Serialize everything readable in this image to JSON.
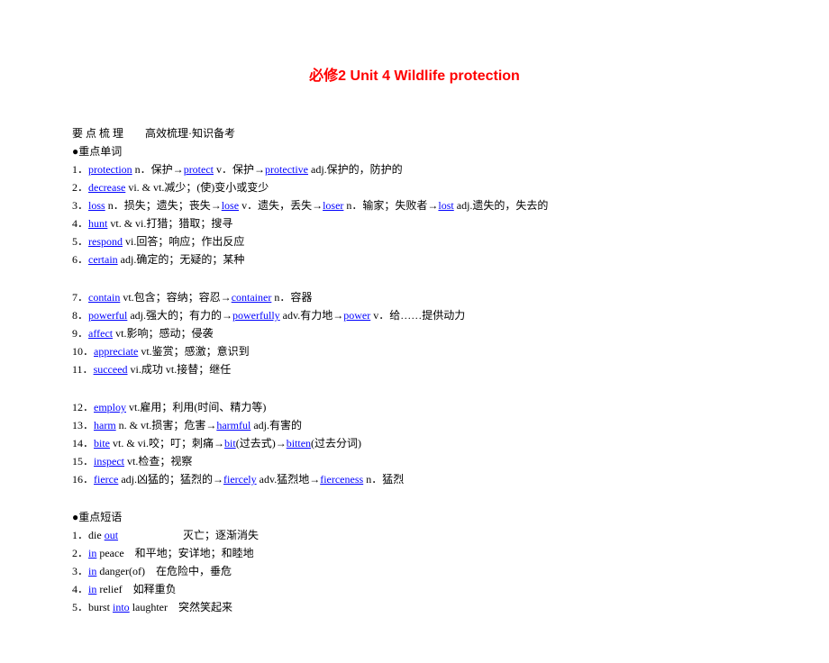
{
  "title": "必修2  Unit 4  Wildlife protection",
  "preline": "要 点 梳 理　　高效梳理·知识备考",
  "sections": [
    {
      "head": "●重点单词",
      "groups": [
        [
          {
            "n": "1．",
            "t": [
              {
                "u": "protection"
              },
              {
                "x": " n．保护→"
              },
              {
                "u": "protect"
              },
              {
                "x": " v．保护→"
              },
              {
                "u": "protective"
              },
              {
                "x": " adj.保护的，防护的"
              }
            ]
          },
          {
            "n": "2．",
            "t": [
              {
                "u": "decrease"
              },
              {
                "x": " vi. & vt.减少；(使)变小或变少"
              }
            ]
          },
          {
            "n": "3．",
            "t": [
              {
                "u": "loss"
              },
              {
                "x": " n．损失；遗失；丧失→"
              },
              {
                "u": "lose"
              },
              {
                "x": " v．遗失，丢失→"
              },
              {
                "u": "loser"
              },
              {
                "x": " n．输家；失败者→"
              },
              {
                "u": "lost"
              },
              {
                "x": " adj.遗失的，失去的"
              }
            ]
          },
          {
            "n": "4．",
            "t": [
              {
                "u": "hunt"
              },
              {
                "x": " vt. & vi.打猎；猎取；搜寻"
              }
            ]
          },
          {
            "n": "5．",
            "t": [
              {
                "u": "respond"
              },
              {
                "x": " vi.回答；响应；作出反应"
              }
            ]
          },
          {
            "n": "6．",
            "t": [
              {
                "u": "certain"
              },
              {
                "x": " adj.确定的；无疑的；某种"
              }
            ]
          }
        ],
        [
          {
            "n": "7．",
            "t": [
              {
                "u": "contain"
              },
              {
                "x": " vt.包含；容纳；容忍→"
              },
              {
                "u": "container"
              },
              {
                "x": " n．容器"
              }
            ]
          },
          {
            "n": "8．",
            "t": [
              {
                "u": "powerful"
              },
              {
                "x": " adj.强大的；有力的→"
              },
              {
                "u": "powerfully"
              },
              {
                "x": " adv.有力地→"
              },
              {
                "u": "power"
              },
              {
                "x": " v．给……提供动力"
              }
            ]
          },
          {
            "n": "9．",
            "t": [
              {
                "u": "affect"
              },
              {
                "x": " vt.影响；感动；侵袭"
              }
            ]
          },
          {
            "n": "10．",
            "t": [
              {
                "u": "appreciate"
              },
              {
                "x": " vt.鉴赏；感激；意识到"
              }
            ]
          },
          {
            "n": "11．",
            "t": [
              {
                "u": "succeed"
              },
              {
                "x": " vi.成功 vt.接替；继任"
              }
            ]
          }
        ],
        [
          {
            "n": "12．",
            "t": [
              {
                "u": "employ"
              },
              {
                "x": " vt.雇用；利用(时间、精力等)"
              }
            ]
          },
          {
            "n": "13．",
            "t": [
              {
                "u": "harm"
              },
              {
                "x": " n. & vt.损害；危害→"
              },
              {
                "u": "harmful"
              },
              {
                "x": " adj.有害的"
              }
            ]
          },
          {
            "n": "14．",
            "t": [
              {
                "u": "bite"
              },
              {
                "x": " vt. & vi.咬；叮；刺痛→"
              },
              {
                "u": "bit"
              },
              {
                "x": "(过去式)→"
              },
              {
                "u": "bitten"
              },
              {
                "x": "(过去分词)"
              }
            ]
          },
          {
            "n": "15．",
            "t": [
              {
                "u": "inspect"
              },
              {
                "x": " vt.检查；视察"
              }
            ]
          },
          {
            "n": "16．",
            "t": [
              {
                "u": "fierce"
              },
              {
                "x": " adj.凶猛的；猛烈的→"
              },
              {
                "u": "fiercely"
              },
              {
                "x": " adv.猛烈地→"
              },
              {
                "u": "fierceness"
              },
              {
                "x": " n．猛烈"
              }
            ]
          }
        ]
      ]
    },
    {
      "head": "●重点短语",
      "groups": [
        [
          {
            "n": "1．",
            "t": [
              {
                "x": "die "
              },
              {
                "u": "out"
              },
              {
                "x": "　　　　　　灭亡；逐渐消失"
              }
            ]
          },
          {
            "n": "2．",
            "t": [
              {
                "u": "in"
              },
              {
                "x": " peace　和平地；安详地；和睦地"
              }
            ]
          },
          {
            "n": "3．",
            "t": [
              {
                "u": "in"
              },
              {
                "x": " danger(of)　在危险中，垂危"
              }
            ]
          },
          {
            "n": "4．",
            "t": [
              {
                "u": "in"
              },
              {
                "x": " relief　如释重负"
              }
            ]
          },
          {
            "n": "5．",
            "t": [
              {
                "x": "burst "
              },
              {
                "u": "into"
              },
              {
                "x": " laughter　突然笑起来"
              }
            ]
          }
        ]
      ]
    }
  ]
}
